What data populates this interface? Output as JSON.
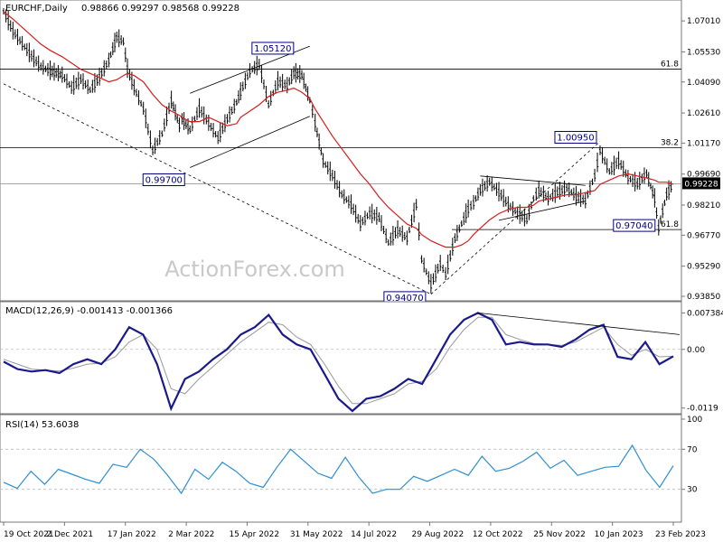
{
  "chart_data": {
    "type": "candlestick",
    "symbol_header": "EURCHF,Daily",
    "ohlc_header": "0.98866 0.99297 0.98568 0.99228",
    "watermark": "ActionForex.com",
    "x_tick_labels": [
      "19 Oct 2021",
      "2 Dec 2021",
      "17 Jan 2022",
      "2 Mar 2022",
      "15 Apr 2022",
      "31 May 2022",
      "14 Jul 2022",
      "29 Aug 2022",
      "12 Oct 2022",
      "25 Nov 2022",
      "10 Jan 2023",
      "23 Feb 2023"
    ],
    "price_axis": {
      "ylim": [
        0.9385,
        1.0775
      ],
      "tick_labels": [
        "1.07010",
        "1.05530",
        "1.04090",
        "1.02610",
        "1.01170",
        "0.99690",
        "0.98210",
        "0.96770",
        "0.95290",
        "0.93850"
      ],
      "last_price_label": "0.99228",
      "last_price": 0.99228
    },
    "price_series": {
      "x": [
        "2021-10-19",
        "2021-10-26",
        "2021-11-02",
        "2021-11-09",
        "2021-11-16",
        "2021-11-23",
        "2021-12-02",
        "2021-12-09",
        "2021-12-16",
        "2021-12-23",
        "2021-12-30",
        "2022-01-06",
        "2022-01-12",
        "2022-01-17",
        "2022-01-20",
        "2022-01-25",
        "2022-02-01",
        "2022-02-08",
        "2022-02-15",
        "2022-02-22",
        "2022-02-28",
        "2022-03-02",
        "2022-03-08",
        "2022-03-15",
        "2022-03-22",
        "2022-03-29",
        "2022-04-05",
        "2022-04-12",
        "2022-04-15",
        "2022-04-22",
        "2022-04-29",
        "2022-05-06",
        "2022-05-13",
        "2022-05-20",
        "2022-05-25",
        "2022-05-31",
        "2022-06-06",
        "2022-06-10",
        "2022-06-16",
        "2022-06-23",
        "2022-06-30",
        "2022-07-07",
        "2022-07-14",
        "2022-07-21",
        "2022-07-28",
        "2022-08-04",
        "2022-08-11",
        "2022-08-18",
        "2022-08-25",
        "2022-08-29",
        "2022-09-05",
        "2022-09-12",
        "2022-09-16",
        "2022-09-23",
        "2022-09-28",
        "2022-10-03",
        "2022-10-07",
        "2022-10-12",
        "2022-10-19",
        "2022-10-26",
        "2022-11-02",
        "2022-11-09",
        "2022-11-16",
        "2022-11-21",
        "2022-11-25",
        "2022-12-02",
        "2022-12-09",
        "2022-12-16",
        "2022-12-23",
        "2022-12-30",
        "2023-01-06",
        "2023-01-10",
        "2023-01-17",
        "2023-01-24",
        "2023-01-31",
        "2023-02-07",
        "2023-02-14",
        "2023-02-20",
        "2023-02-23",
        "2023-03-01",
        "2023-03-06"
      ],
      "close": [
        1.0745,
        1.065,
        1.059,
        1.053,
        1.048,
        1.046,
        1.044,
        1.038,
        1.042,
        1.037,
        1.043,
        1.051,
        1.062,
        1.06,
        1.047,
        1.038,
        1.028,
        1.008,
        1.016,
        1.032,
        1.02,
        1.023,
        1.018,
        1.028,
        1.021,
        1.014,
        1.023,
        1.031,
        1.036,
        1.046,
        1.049,
        1.03,
        1.041,
        1.039,
        1.045,
        1.044,
        1.032,
        1.021,
        1.003,
        0.996,
        0.987,
        0.982,
        0.973,
        0.978,
        0.976,
        0.964,
        0.97,
        0.966,
        0.982,
        0.956,
        0.944,
        0.954,
        0.949,
        0.966,
        0.973,
        0.98,
        0.983,
        0.989,
        0.993,
        0.988,
        0.982,
        0.978,
        0.975,
        0.985,
        0.989,
        0.985,
        0.988,
        0.99,
        0.986,
        0.984,
        0.996,
        1.008,
        0.998,
        1.003,
        0.995,
        0.992,
        0.997,
        0.985,
        0.971,
        0.987,
        0.99228
      ],
      "ma": [
        1.0745,
        1.071,
        1.067,
        1.063,
        1.059,
        1.056,
        1.053,
        1.05,
        1.047,
        1.045,
        1.043,
        1.041,
        1.042,
        1.044,
        1.045,
        1.044,
        1.041,
        1.035,
        1.03,
        1.027,
        1.025,
        1.024,
        1.022,
        1.022,
        1.024,
        1.022,
        1.02,
        1.021,
        1.024,
        1.027,
        1.03,
        1.034,
        1.036,
        1.037,
        1.038,
        1.036,
        1.033,
        1.028,
        1.022,
        1.015,
        1.009,
        1.003,
        0.997,
        0.992,
        0.986,
        0.981,
        0.977,
        0.973,
        0.971,
        0.968,
        0.965,
        0.963,
        0.962,
        0.962,
        0.963,
        0.965,
        0.968,
        0.971,
        0.975,
        0.978,
        0.98,
        0.981,
        0.981,
        0.982,
        0.984,
        0.985,
        0.986,
        0.987,
        0.987,
        0.988,
        0.989,
        0.992,
        0.994,
        0.996,
        0.997,
        0.996,
        0.995,
        0.994,
        0.993,
        0.993,
        0.992
      ]
    },
    "annotations": {
      "fib_high_label": "61.8",
      "fib_high": 1.0471,
      "fib_mid_label": "38.2",
      "fib_mid": 1.0095,
      "fib_low_label": "61.8",
      "fib_low": 0.9704,
      "swing_labels": [
        {
          "text": "1.05120",
          "value": 1.0512,
          "date": "2022-04-29"
        },
        {
          "text": "0.99700",
          "value": 0.997,
          "date": "2022-03-08"
        },
        {
          "text": "1.00950",
          "value": 1.0095,
          "date": "2023-01-10"
        },
        {
          "text": "0.97040",
          "value": 0.9704,
          "date": "2023-02-23"
        },
        {
          "text": "0.94070",
          "value": 0.9407,
          "date": "2022-09-05"
        }
      ]
    },
    "macd": {
      "header": "MACD(12,26,9) -0.001413 -0.001366",
      "tick_labels": [
        "0.007384",
        "0.00",
        "-0.0119"
      ],
      "ylim": [
        -0.0125,
        0.0082
      ],
      "macd_values": [
        -0.0025,
        -0.004,
        -0.0045,
        -0.0042,
        -0.0048,
        -0.003,
        -0.002,
        -0.003,
        0.0,
        0.0045,
        0.003,
        -0.003,
        -0.012,
        -0.006,
        -0.0045,
        -0.002,
        0.0,
        0.003,
        0.0045,
        0.007,
        0.003,
        0.001,
        0.0,
        -0.005,
        -0.01,
        -0.0125,
        -0.01,
        -0.0095,
        -0.008,
        -0.006,
        -0.007,
        -0.002,
        0.003,
        0.006,
        0.0074,
        0.006,
        0.001,
        0.0015,
        0.001,
        0.001,
        0.0005,
        0.002,
        0.004,
        0.005,
        -0.0015,
        -0.002,
        0.0015,
        -0.003,
        -0.0014
      ],
      "signal_values": [
        -0.002,
        -0.003,
        -0.004,
        -0.0042,
        -0.0044,
        -0.0038,
        -0.003,
        -0.0028,
        -0.0015,
        0.0015,
        0.003,
        0.0,
        -0.008,
        -0.009,
        -0.006,
        -0.0035,
        -0.001,
        0.0015,
        0.0035,
        0.0055,
        0.005,
        0.0025,
        0.001,
        -0.003,
        -0.0075,
        -0.011,
        -0.011,
        -0.01,
        -0.009,
        -0.007,
        -0.0065,
        -0.004,
        0.0005,
        0.004,
        0.0065,
        0.0065,
        0.003,
        0.002,
        0.0012,
        0.001,
        0.0008,
        0.0015,
        0.003,
        0.0045,
        0.001,
        -0.0012,
        0.0,
        -0.0015,
        -0.0014
      ]
    },
    "rsi": {
      "header": "RSI(14) 53.6038",
      "tick_labels": [
        "100",
        "70",
        "30",
        "0"
      ],
      "ylim": [
        0,
        100
      ],
      "levels": [
        70,
        30
      ],
      "values": [
        37,
        31,
        48,
        35,
        50,
        45,
        40,
        36,
        55,
        52,
        70,
        60,
        44,
        26,
        50,
        40,
        57,
        48,
        36,
        32,
        52,
        70,
        58,
        46,
        41,
        62,
        42,
        26,
        30,
        30,
        43,
        38,
        44,
        50,
        44,
        63,
        48,
        51,
        58,
        67,
        51,
        59,
        44,
        48,
        52,
        53,
        74,
        49,
        32,
        53.6
      ]
    }
  }
}
